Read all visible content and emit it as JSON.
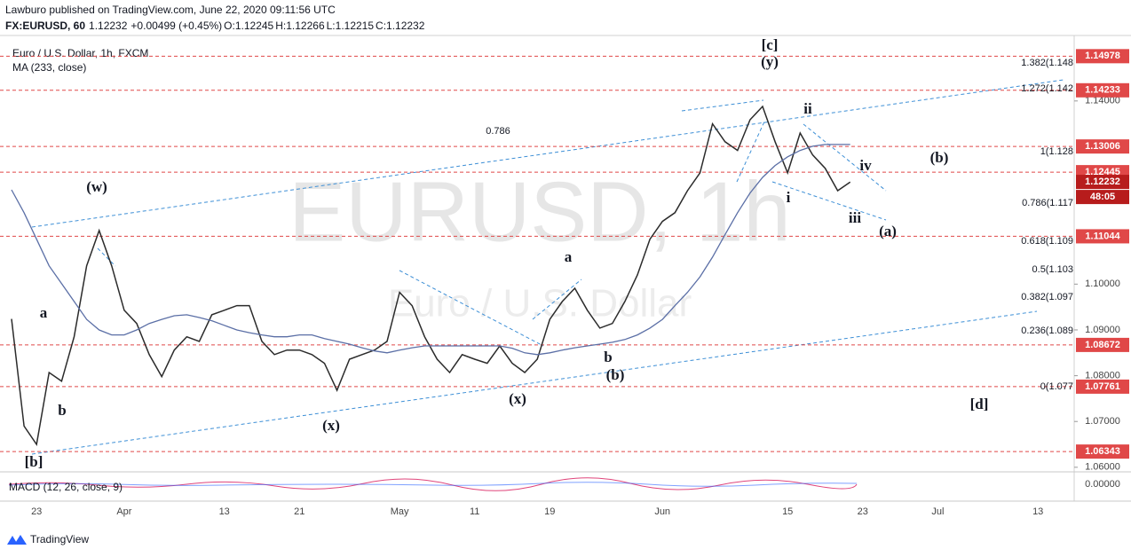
{
  "header": {
    "byline": "Lawburo published on TradingView.com, June 22, 2020 09:11:56 UTC",
    "symbol": "FX:EURUSD, 60",
    "last": "1.12232",
    "change": "+0.00499 (+0.45%)",
    "ohlc": [
      {
        "label": "O:",
        "value": "1.12245"
      },
      {
        "label": "H:",
        "value": "1.12266"
      },
      {
        "label": "L:",
        "value": "1.12215"
      },
      {
        "label": "C:",
        "value": "1.12232"
      }
    ]
  },
  "chart_data": {
    "type": "line",
    "legend": [
      "Euro / U.S. Dollar, 1h, FXCM",
      "MA (233, close)"
    ],
    "watermark": [
      "EURUSD, 1h",
      "Euro / U.S. Dollar"
    ],
    "categories": [
      null,
      null,
      "23",
      null,
      null,
      null,
      null,
      null,
      null,
      "Apr",
      null,
      null,
      null,
      null,
      null,
      null,
      null,
      "13",
      null,
      null,
      null,
      null,
      null,
      "21",
      null,
      null,
      null,
      null,
      null,
      null,
      null,
      "May",
      null,
      null,
      null,
      null,
      null,
      "11",
      null,
      null,
      null,
      null,
      null,
      "19",
      null,
      null,
      null,
      null,
      null,
      null,
      null,
      null,
      "Jun",
      null,
      null,
      null,
      null,
      null,
      null,
      null,
      null,
      null,
      "15",
      null,
      null,
      null,
      null,
      null,
      "23",
      null,
      null,
      null,
      null,
      null,
      "Jul",
      null,
      null,
      null,
      null,
      null,
      null,
      null,
      "13",
      null,
      null
    ],
    "series": [
      {
        "color": "#2b2b2b",
        "values": [
          1.0924,
          1.069,
          1.065,
          1.0807,
          1.0788,
          1.0885,
          1.104,
          1.1117,
          1.104,
          1.0943,
          1.0914,
          1.0846,
          1.0798,
          1.0856,
          1.0885,
          1.0875,
          1.0933,
          1.0943,
          1.0953,
          1.0953,
          1.0875,
          1.0846,
          1.0856,
          1.0856,
          1.0846,
          1.0827,
          1.0768,
          1.0836,
          1.0846,
          1.0856,
          1.0875,
          1.0982,
          1.0953,
          1.0885,
          1.0836,
          1.0807,
          1.0846,
          1.0836,
          1.0827,
          1.0865,
          1.0827,
          1.0807,
          1.0836,
          1.0923,
          1.0962,
          1.0991,
          1.0943,
          1.0904,
          1.0914,
          1.0962,
          1.102,
          1.1098,
          1.1137,
          1.1156,
          1.1204,
          1.1243,
          1.135,
          1.1311,
          1.1292,
          1.1359,
          1.1388,
          1.1311,
          1.1243,
          1.133,
          1.1282,
          1.1253,
          1.1204,
          1.1223,
          null,
          null,
          null,
          null,
          null,
          null,
          null,
          null,
          null,
          null,
          null,
          null,
          null,
          null,
          null,
          null,
          null
        ]
      },
      {
        "color": "#5b6fa6",
        "values": [
          1.1206,
          1.1156,
          1.1098,
          1.104,
          1.1001,
          1.0962,
          1.0923,
          1.09,
          1.0889,
          1.0889,
          1.09,
          1.0914,
          1.0923,
          1.0931,
          1.0933,
          1.0927,
          1.092,
          1.091,
          1.09,
          1.0894,
          1.0889,
          1.0885,
          1.0885,
          1.0889,
          1.0889,
          1.0881,
          1.0875,
          1.0869,
          1.0861,
          1.0854,
          1.085,
          1.0856,
          1.0861,
          1.0865,
          1.0865,
          1.0865,
          1.0865,
          1.0865,
          1.0865,
          1.0865,
          1.086,
          1.085,
          1.0846,
          1.085,
          1.0856,
          1.0861,
          1.0865,
          1.0869,
          1.0873,
          1.0879,
          1.0889,
          1.0904,
          1.0923,
          1.0953,
          1.0982,
          1.1016,
          1.1059,
          1.1108,
          1.1156,
          1.1199,
          1.1233,
          1.1259,
          1.1278,
          1.1292,
          1.1301,
          1.1305,
          1.1305,
          1.1305,
          null,
          null,
          null,
          null,
          null,
          null,
          null,
          null,
          null,
          null,
          null,
          null,
          null,
          null,
          null,
          null,
          null
        ]
      }
    ],
    "ylim": [
      1.059,
      1.1543
    ],
    "yticks": [
      {
        "value": 1.14,
        "label": "1.14000"
      },
      {
        "value": 1.1,
        "label": "1.10000"
      },
      {
        "value": 1.09,
        "label": "1.09000"
      },
      {
        "value": 1.08,
        "label": "1.08000"
      },
      {
        "value": 1.07,
        "label": "1.07000"
      },
      {
        "value": 1.06,
        "label": "1.06000"
      }
    ],
    "levels": [
      1.14978,
      1.14233,
      1.13006,
      1.12445,
      1.11044,
      1.08672,
      1.07761,
      1.06343
    ],
    "level_color": "#e04848",
    "last_price": 1.12232,
    "countdown": "48:05",
    "fib": [
      {
        "label": "1.382(1.148",
        "color": "#5b5bd6"
      },
      {
        "label": "1.272(1.142",
        "color": "#c2c23a"
      },
      {
        "label": "1(1.128",
        "color": "#888888"
      },
      {
        "label": "0.786(1.117",
        "color": "#3f9fd8"
      },
      {
        "label": "0.618(1.109",
        "color": "#2ca02c"
      },
      {
        "label": "0.5(1.103",
        "color": "#3bab3b"
      },
      {
        "label": "0.382(1.097",
        "color": "#9bbb2b"
      },
      {
        "label": "0.236(1.089",
        "color": "#e05050"
      },
      {
        "label": "0(1.077",
        "color": "#888888"
      }
    ],
    "annotations": [
      {
        "text": "[c]",
        "color": "#787878"
      },
      {
        "text": "(y)",
        "color": "#787878"
      },
      {
        "text": "ii",
        "color": "#787878"
      },
      {
        "text": "iv",
        "color": "#787878"
      },
      {
        "text": "(b)",
        "color": "#787878"
      },
      {
        "text": "i",
        "color": "#787878"
      },
      {
        "text": "iii",
        "color": "#787878"
      },
      {
        "text": "(a)",
        "color": "#787878"
      },
      {
        "text": "a",
        "color": "#787878"
      },
      {
        "text": "b",
        "color": "#787878"
      },
      {
        "text": "(b)",
        "color": "#b4b4b4"
      },
      {
        "text": "(x)",
        "color": "#787878"
      },
      {
        "text": "(x)",
        "color": "#b4b4b4"
      },
      {
        "text": "[d]",
        "color": "#787878"
      },
      {
        "text": "(w)",
        "color": "#787878"
      },
      {
        "text": "a",
        "color": "#787878"
      },
      {
        "text": "b",
        "color": "#787878"
      },
      {
        "text": "[b]",
        "color": "#787878"
      },
      {
        "text": "0.786",
        "color": "#888888"
      }
    ],
    "macd": {
      "label": "MACD (12, 26, close, 9)",
      "value": "0.00000"
    }
  },
  "footer": {
    "brand": "TradingView"
  }
}
